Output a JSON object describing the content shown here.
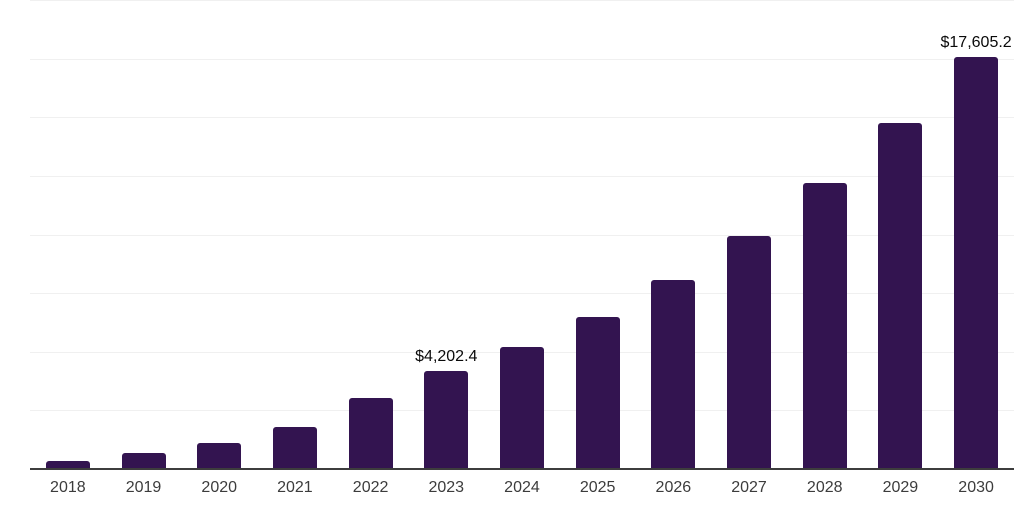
{
  "chart_data": {
    "type": "bar",
    "title": "",
    "xlabel": "",
    "ylabel": "",
    "categories": [
      "2018",
      "2019",
      "2020",
      "2021",
      "2022",
      "2023",
      "2024",
      "2025",
      "2026",
      "2027",
      "2028",
      "2029",
      "2030"
    ],
    "values": [
      380,
      740,
      1160,
      1820,
      3050,
      4202.4,
      5250,
      6510,
      8100,
      10000,
      12240,
      14780,
      17605.2
    ],
    "bar_labels": {
      "2023": "$4,202.4",
      "2030": "$17,605.2"
    },
    "ylim": [
      0,
      20000
    ],
    "gridline_interval": 2500,
    "grid": "horizontal",
    "legend_position": "none",
    "colors": {
      "bar": "#331450",
      "gridline": "#f0f0f0",
      "axis_line": "#3d3d3d",
      "bar_label_text": "#0a0a0a",
      "tick_label_text": "#3c3c3c",
      "background": "#ffffff"
    }
  }
}
